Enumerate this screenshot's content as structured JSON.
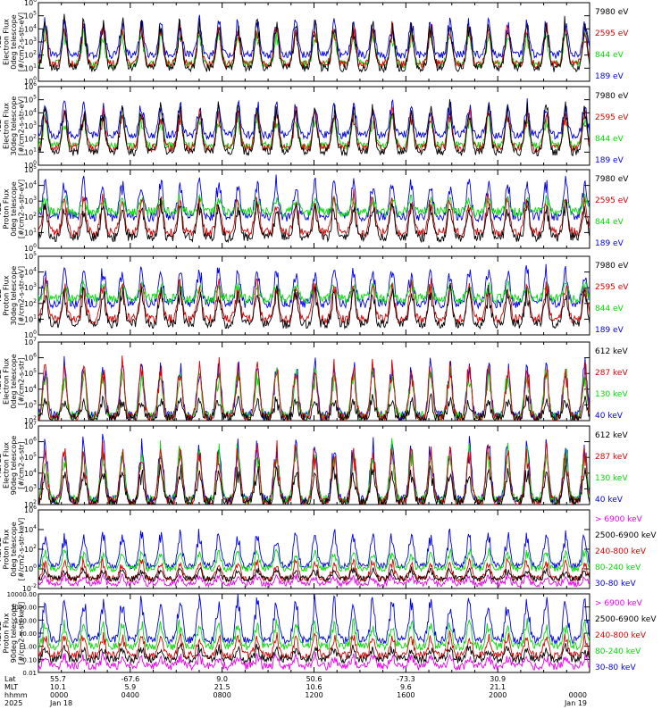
{
  "colors": {
    "black": "#000000",
    "red": "#dd0000",
    "green": "#00dd00",
    "blue": "#0000ee",
    "magenta": "#ee00ee"
  },
  "chart_data": [
    {
      "type": "line",
      "panel": "ted-electron-0",
      "ylabel_lines": [
        "TED",
        "Electron Flux",
        "0deg telescope",
        "[#/cm2-s-str-eV]"
      ],
      "yscale": "log",
      "ylim": [
        1,
        1000000
      ],
      "ytick_labels": [
        "10^0",
        "10^1",
        "10^2",
        "10^3",
        "10^4",
        "10^5",
        "10^6"
      ],
      "series": [
        {
          "name": "7980 eV",
          "color": "black",
          "baseline": 10,
          "peak": 100000
        },
        {
          "name": "2595 eV",
          "color": "red",
          "baseline": 20,
          "peak": 30000
        },
        {
          "name": "844 eV",
          "color": "green",
          "baseline": 20,
          "peak": 10000
        },
        {
          "name": "189 eV",
          "color": "blue",
          "baseline": 100,
          "peak": 100000
        }
      ]
    },
    {
      "type": "line",
      "panel": "ted-electron-30",
      "ylabel_lines": [
        "TED",
        "Electron Flux",
        "30deg telescope",
        "[#/cm2-s-str-eV]"
      ],
      "yscale": "log",
      "ylim": [
        1,
        1000000
      ],
      "ytick_labels": [
        "10^0",
        "10^1",
        "10^2",
        "10^3",
        "10^4",
        "10^5",
        "10^6"
      ],
      "series": [
        {
          "name": "7980 eV",
          "color": "black",
          "baseline": 10,
          "peak": 100000
        },
        {
          "name": "2595 eV",
          "color": "red",
          "baseline": 20,
          "peak": 30000
        },
        {
          "name": "844 eV",
          "color": "green",
          "baseline": 30,
          "peak": 10000
        },
        {
          "name": "189 eV",
          "color": "blue",
          "baseline": 200,
          "peak": 100000
        }
      ]
    },
    {
      "type": "line",
      "panel": "ted-proton-0",
      "ylabel_lines": [
        "TED",
        "Proton Flux",
        "0deg telescope",
        "[#/cm2-s-str-eV]"
      ],
      "yscale": "log",
      "ylim": [
        1,
        100000
      ],
      "ytick_labels": [
        "10^0",
        "10^1",
        "10^2",
        "10^3",
        "10^4",
        "10^5"
      ],
      "series": [
        {
          "name": "7980 eV",
          "color": "black",
          "baseline": 5,
          "peak": 1000
        },
        {
          "name": "2595 eV",
          "color": "red",
          "baseline": 10,
          "peak": 3000
        },
        {
          "name": "844 eV",
          "color": "green",
          "baseline": 200,
          "peak": 2000
        },
        {
          "name": "189 eV",
          "color": "blue",
          "baseline": 100,
          "peak": 30000
        }
      ]
    },
    {
      "type": "line",
      "panel": "ted-proton-30",
      "ylabel_lines": [
        "TED",
        "Proton Flux",
        "30deg telescope",
        "[#/cm2-s-str-eV]"
      ],
      "yscale": "log",
      "ylim": [
        1,
        100000
      ],
      "ytick_labels": [
        "10^0",
        "10^1",
        "10^2",
        "10^3",
        "10^4",
        "10^5"
      ],
      "series": [
        {
          "name": "7980 eV",
          "color": "black",
          "baseline": 5,
          "peak": 1000
        },
        {
          "name": "2595 eV",
          "color": "red",
          "baseline": 10,
          "peak": 3000
        },
        {
          "name": "844 eV",
          "color": "green",
          "baseline": 200,
          "peak": 2000
        },
        {
          "name": "189 eV",
          "color": "blue",
          "baseline": 100,
          "peak": 30000
        }
      ]
    },
    {
      "type": "line",
      "panel": "meped-electron-0",
      "ylabel_lines": [
        "MEPED",
        "Electron Flux",
        "0deg telescope",
        "[#/cm2-s-str]"
      ],
      "yscale": "log",
      "ylim": [
        100,
        10000000
      ],
      "ytick_labels": [
        "10^2",
        "10^3",
        "10^4",
        "10^5",
        "10^6",
        "10^7"
      ],
      "series": [
        {
          "name": "612 keV",
          "color": "black",
          "baseline": 150,
          "peak": 3000
        },
        {
          "name": "287 keV",
          "color": "red",
          "baseline": 150,
          "peak": 1000000
        },
        {
          "name": "130 keV",
          "color": "green",
          "baseline": 200,
          "peak": 300000
        },
        {
          "name": "40 keV",
          "color": "blue",
          "baseline": 200,
          "peak": 1000000
        }
      ]
    },
    {
      "type": "line",
      "panel": "meped-electron-90",
      "ylabel_lines": [
        "MEPED",
        "Electron Flux",
        "90deg telescope",
        "[#/cm2-s-str]"
      ],
      "yscale": "log",
      "ylim": [
        100,
        10000000
      ],
      "ytick_labels": [
        "10^2",
        "10^3",
        "10^4",
        "10^5",
        "10^6",
        "10^7"
      ],
      "series": [
        {
          "name": "612 keV",
          "color": "black",
          "baseline": 150,
          "peak": 30000
        },
        {
          "name": "287 keV",
          "color": "red",
          "baseline": 150,
          "peak": 1000000
        },
        {
          "name": "130 keV",
          "color": "green",
          "baseline": 200,
          "peak": 1000000
        },
        {
          "name": "40 keV",
          "color": "blue",
          "baseline": 200,
          "peak": 3000000
        }
      ]
    },
    {
      "type": "line",
      "panel": "meped-proton-0",
      "ylabel_lines": [
        "MEPED",
        "Proton Flux",
        "0deg telescope",
        "[#/cm2-s-str-keV]"
      ],
      "yscale": "log",
      "ylim": [
        0.01,
        1000000
      ],
      "ytick_labels": [
        "10^-2",
        "10^0",
        "10^2",
        "10^4",
        "10^6"
      ],
      "series": [
        {
          "name": "> 6900 keV",
          "color": "magenta",
          "baseline": 0.03,
          "peak": 0.2
        },
        {
          "name": "2500-6900 keV",
          "color": "black",
          "baseline": 0.1,
          "peak": 1
        },
        {
          "name": "240-800 keV",
          "color": "red",
          "baseline": 0.1,
          "peak": 10
        },
        {
          "name": "80-240 keV",
          "color": "green",
          "baseline": 1,
          "peak": 100
        },
        {
          "name": "30-80 keV",
          "color": "blue",
          "baseline": 2,
          "peak": 10000
        }
      ]
    },
    {
      "type": "line",
      "panel": "meped-proton-90",
      "ylabel_lines": [
        "MEPED",
        "Proton Flux",
        "90deg telescope",
        "[#/cm2-s-str-keV]"
      ],
      "yscale": "log",
      "ylim": [
        0.01,
        10000
      ],
      "ytick_labels": [
        "10000.00",
        "1000.00",
        "100.00",
        "10.00",
        "1.00",
        "0.10",
        "0.01"
      ],
      "series": [
        {
          "name": "> 6900 keV",
          "color": "magenta",
          "baseline": 0.03,
          "peak": 0.2
        },
        {
          "name": "2500-6900 keV",
          "color": "black",
          "baseline": 0.1,
          "peak": 1
        },
        {
          "name": "240-800 keV",
          "color": "red",
          "baseline": 0.2,
          "peak": 10
        },
        {
          "name": "80-240 keV",
          "color": "green",
          "baseline": 1,
          "peak": 100
        },
        {
          "name": "30-80 keV",
          "color": "blue",
          "baseline": 3,
          "peak": 10000
        }
      ]
    }
  ],
  "x_axis": {
    "row_labels": [
      "Lat",
      "MLT",
      "hhmm",
      "2025"
    ],
    "columns": [
      {
        "lat": "55.7",
        "mlt": "10.1",
        "hhmm": "0000",
        "date": "Jan 18"
      },
      {
        "lat": "-67.6",
        "mlt": "5.9",
        "hhmm": "0400",
        "date": ""
      },
      {
        "lat": "9.0",
        "mlt": "21.5",
        "hhmm": "0800",
        "date": ""
      },
      {
        "lat": "50.6",
        "mlt": "10.6",
        "hhmm": "1200",
        "date": ""
      },
      {
        "lat": "-73.3",
        "mlt": "9.6",
        "hhmm": "1600",
        "date": ""
      },
      {
        "lat": "30.9",
        "mlt": "21.1",
        "hhmm": "2000",
        "date": ""
      },
      {
        "lat": "",
        "mlt": "",
        "hhmm": "0000",
        "date": "Jan 19"
      }
    ]
  }
}
